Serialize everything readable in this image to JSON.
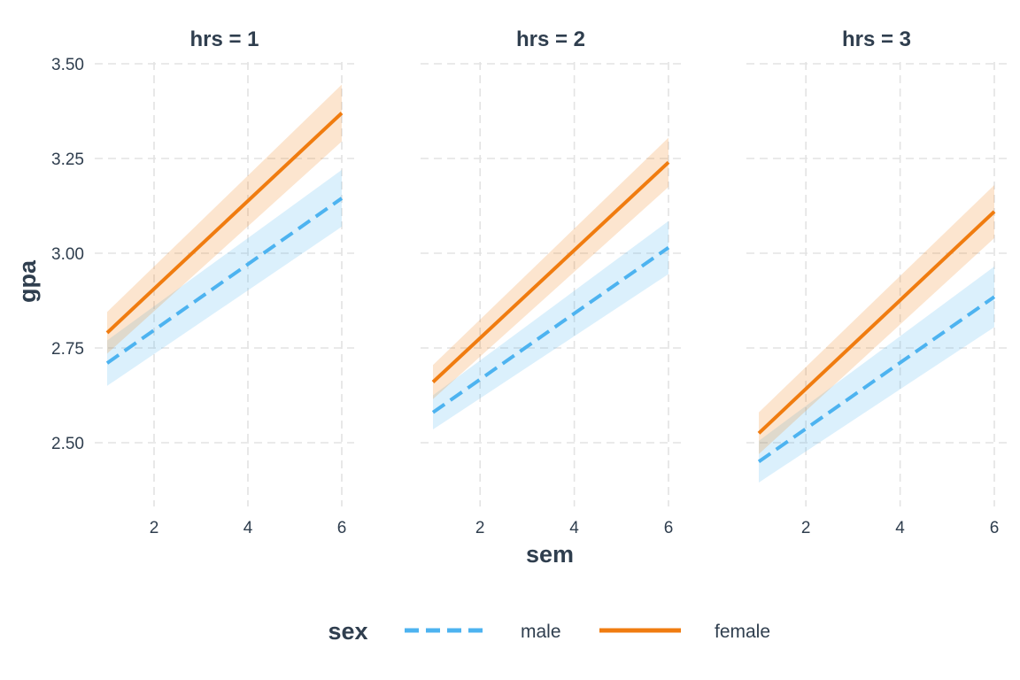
{
  "chart_data": {
    "type": "line",
    "facet_var": "hrs",
    "xlabel": "sem",
    "ylabel": "gpa",
    "xlim": [
      1,
      6
    ],
    "ylim": [
      2.35,
      3.52
    ],
    "x_ticks": [
      2,
      4,
      6
    ],
    "y_ticks": [
      2.5,
      2.75,
      3.0,
      3.25,
      3.5
    ],
    "y_tick_labels": [
      "2.50",
      "2.75",
      "3.00",
      "3.25",
      "3.50"
    ],
    "grid": true,
    "legend": {
      "title": "sex",
      "placement": "bottom",
      "entries": [
        {
          "label": "male",
          "color": "#4db3f0",
          "linetype": "dashed"
        },
        {
          "label": "female",
          "color": "#f07c10",
          "linetype": "solid"
        }
      ]
    },
    "facets": [
      {
        "label": "hrs = 1",
        "series": [
          {
            "name": "male",
            "x": [
              1,
              6
            ],
            "y": [
              2.71,
              3.145
            ],
            "lower": [
              2.65,
              3.07
            ],
            "upper": [
              2.77,
              3.22
            ]
          },
          {
            "name": "female",
            "x": [
              1,
              6
            ],
            "y": [
              2.79,
              3.37
            ],
            "lower": [
              2.735,
              3.295
            ],
            "upper": [
              2.845,
              3.445
            ]
          }
        ]
      },
      {
        "label": "hrs = 2",
        "series": [
          {
            "name": "male",
            "x": [
              1,
              6
            ],
            "y": [
              2.58,
              3.015
            ],
            "lower": [
              2.535,
              2.945
            ],
            "upper": [
              2.625,
              3.085
            ]
          },
          {
            "name": "female",
            "x": [
              1,
              6
            ],
            "y": [
              2.66,
              3.24
            ],
            "lower": [
              2.615,
              3.175
            ],
            "upper": [
              2.705,
              3.305
            ]
          }
        ]
      },
      {
        "label": "hrs = 3",
        "series": [
          {
            "name": "male",
            "x": [
              1,
              6
            ],
            "y": [
              2.45,
              2.885
            ],
            "lower": [
              2.395,
              2.805
            ],
            "upper": [
              2.505,
              2.965
            ]
          },
          {
            "name": "female",
            "x": [
              1,
              6
            ],
            "y": [
              2.525,
              3.11
            ],
            "lower": [
              2.47,
              3.04
            ],
            "upper": [
              2.58,
              3.18
            ]
          }
        ]
      }
    ]
  }
}
